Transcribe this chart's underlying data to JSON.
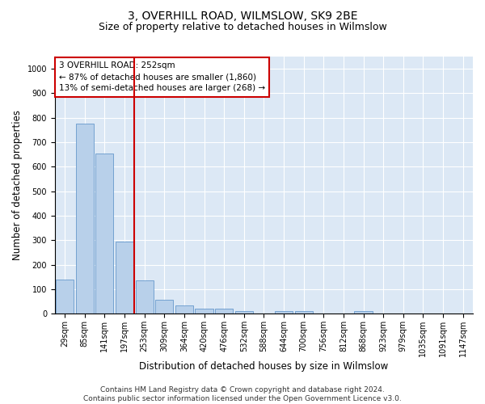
{
  "title": "3, OVERHILL ROAD, WILMSLOW, SK9 2BE",
  "subtitle": "Size of property relative to detached houses in Wilmslow",
  "xlabel": "Distribution of detached houses by size in Wilmslow",
  "ylabel": "Number of detached properties",
  "bar_labels": [
    "29sqm",
    "85sqm",
    "141sqm",
    "197sqm",
    "253sqm",
    "309sqm",
    "364sqm",
    "420sqm",
    "476sqm",
    "532sqm",
    "588sqm",
    "644sqm",
    "700sqm",
    "756sqm",
    "812sqm",
    "868sqm",
    "923sqm",
    "979sqm",
    "1035sqm",
    "1091sqm",
    "1147sqm"
  ],
  "bar_values": [
    140,
    775,
    655,
    295,
    138,
    57,
    33,
    20,
    20,
    10,
    0,
    10,
    10,
    0,
    0,
    10,
    0,
    0,
    0,
    0,
    0
  ],
  "bar_color": "#b8d0ea",
  "bar_edge_color": "#6699cc",
  "vline_color": "#cc0000",
  "vline_x_index": 4,
  "annotation_text": "3 OVERHILL ROAD: 252sqm\n← 87% of detached houses are smaller (1,860)\n13% of semi-detached houses are larger (268) →",
  "annotation_box_color": "white",
  "annotation_box_edge_color": "#cc0000",
  "ylim": [
    0,
    1050
  ],
  "yticks": [
    0,
    100,
    200,
    300,
    400,
    500,
    600,
    700,
    800,
    900,
    1000
  ],
  "plot_bg_color": "#dce8f5",
  "footer": "Contains HM Land Registry data © Crown copyright and database right 2024.\nContains public sector information licensed under the Open Government Licence v3.0.",
  "title_fontsize": 10,
  "subtitle_fontsize": 9,
  "xlabel_fontsize": 8.5,
  "ylabel_fontsize": 8.5,
  "tick_fontsize": 7,
  "footer_fontsize": 6.5
}
